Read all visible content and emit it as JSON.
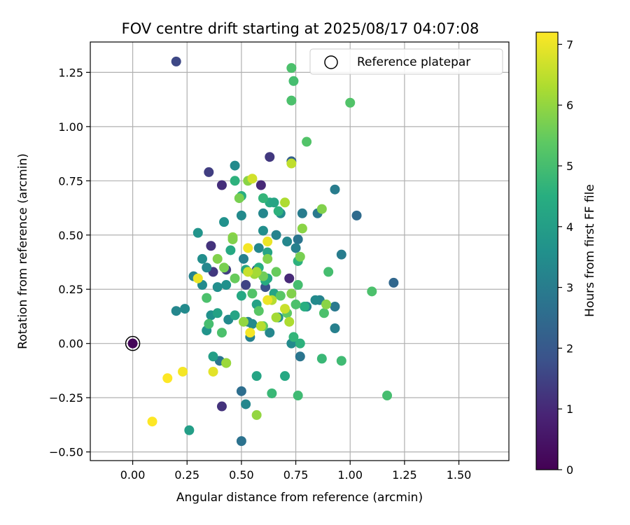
{
  "chart_data": {
    "type": "scatter",
    "title": "FOV centre drift starting at 2025/08/17 04:07:08",
    "xlabel": "Angular distance from reference (arcmin)",
    "ylabel": "Rotation from reference (arcmin)",
    "xlim": [
      -0.195,
      1.73
    ],
    "ylim": [
      -0.54,
      1.39
    ],
    "xticks": [
      0.0,
      0.25,
      0.5,
      0.75,
      1.0,
      1.25,
      1.5
    ],
    "xtick_labels": [
      "0.00",
      "0.25",
      "0.50",
      "0.75",
      "1.00",
      "1.25",
      "1.50"
    ],
    "yticks": [
      -0.5,
      -0.25,
      0.0,
      0.25,
      0.5,
      0.75,
      1.0,
      1.25
    ],
    "ytick_labels": [
      "−0.50",
      "−0.25",
      "0.00",
      "0.25",
      "0.50",
      "0.75",
      "1.00",
      "1.25"
    ],
    "grid": true,
    "legend": {
      "placement": "top-right",
      "entries": [
        {
          "label": "Reference platepar",
          "marker": "open-circle"
        }
      ]
    },
    "reference_point": {
      "x": 0.0,
      "y": 0.0,
      "hours": 0.0
    },
    "colorbar": {
      "label": "Hours from first FF file",
      "colormap": "viridis",
      "range": [
        0,
        7.2
      ],
      "ticks": [
        0,
        1,
        2,
        3,
        4,
        5,
        6,
        7
      ],
      "tick_labels": [
        "0",
        "1",
        "2",
        "3",
        "4",
        "5",
        "6",
        "7"
      ]
    },
    "points": [
      {
        "x": 0.0,
        "y": 0.0,
        "hours": 0.1
      },
      {
        "x": 0.2,
        "y": 1.3,
        "hours": 1.6
      },
      {
        "x": 0.63,
        "y": 0.86,
        "hours": 1.3
      },
      {
        "x": 0.35,
        "y": 0.79,
        "hours": 1.4
      },
      {
        "x": 0.41,
        "y": 0.73,
        "hours": 1.1
      },
      {
        "x": 0.59,
        "y": 0.73,
        "hours": 1.0
      },
      {
        "x": 0.36,
        "y": 0.45,
        "hours": 1.2
      },
      {
        "x": 0.37,
        "y": 0.33,
        "hours": 1.3
      },
      {
        "x": 0.43,
        "y": 0.34,
        "hours": 1.4
      },
      {
        "x": 0.52,
        "y": 0.27,
        "hours": 1.5
      },
      {
        "x": 0.72,
        "y": 0.3,
        "hours": 1.0
      },
      {
        "x": 0.41,
        "y": -0.29,
        "hours": 1.2
      },
      {
        "x": 0.73,
        "y": 0.84,
        "hours": 2.2
      },
      {
        "x": 0.61,
        "y": 0.26,
        "hours": 1.8
      },
      {
        "x": 0.57,
        "y": 0.34,
        "hours": 1.9
      },
      {
        "x": 1.03,
        "y": 0.59,
        "hours": 2.5
      },
      {
        "x": 1.2,
        "y": 0.28,
        "hours": 2.4
      },
      {
        "x": 0.5,
        "y": -0.22,
        "hours": 2.6
      },
      {
        "x": 0.5,
        "y": -0.45,
        "hours": 2.7
      },
      {
        "x": 0.4,
        "y": -0.08,
        "hours": 2.8
      },
      {
        "x": 0.77,
        "y": -0.06,
        "hours": 2.8
      },
      {
        "x": 0.85,
        "y": 0.6,
        "hours": 2.9
      },
      {
        "x": 0.93,
        "y": 0.71,
        "hours": 3.0
      },
      {
        "x": 0.96,
        "y": 0.41,
        "hours": 3.0
      },
      {
        "x": 0.93,
        "y": 0.17,
        "hours": 2.9
      },
      {
        "x": 0.93,
        "y": 0.07,
        "hours": 3.1
      },
      {
        "x": 0.86,
        "y": 0.2,
        "hours": 3.2
      },
      {
        "x": 0.84,
        "y": 0.2,
        "hours": 3.4
      },
      {
        "x": 0.78,
        "y": 0.6,
        "hours": 3.0
      },
      {
        "x": 0.76,
        "y": 0.48,
        "hours": 2.8
      },
      {
        "x": 0.75,
        "y": 0.44,
        "hours": 3.1
      },
      {
        "x": 0.71,
        "y": 0.47,
        "hours": 3.3
      },
      {
        "x": 0.68,
        "y": 0.6,
        "hours": 3.4
      },
      {
        "x": 0.66,
        "y": 0.5,
        "hours": 3.2
      },
      {
        "x": 0.6,
        "y": 0.6,
        "hours": 3.3
      },
      {
        "x": 0.6,
        "y": 0.52,
        "hours": 3.5
      },
      {
        "x": 0.58,
        "y": 0.44,
        "hours": 3.3
      },
      {
        "x": 0.5,
        "y": 0.59,
        "hours": 3.4
      },
      {
        "x": 0.51,
        "y": 0.39,
        "hours": 3.1
      },
      {
        "x": 0.47,
        "y": 0.82,
        "hours": 3.4
      },
      {
        "x": 0.42,
        "y": 0.56,
        "hours": 3.6
      },
      {
        "x": 0.3,
        "y": 0.51,
        "hours": 3.7
      },
      {
        "x": 0.32,
        "y": 0.39,
        "hours": 3.5
      },
      {
        "x": 0.28,
        "y": 0.31,
        "hours": 3.2
      },
      {
        "x": 0.32,
        "y": 0.27,
        "hours": 3.4
      },
      {
        "x": 0.34,
        "y": 0.35,
        "hours": 3.3
      },
      {
        "x": 0.39,
        "y": 0.26,
        "hours": 3.5
      },
      {
        "x": 0.43,
        "y": 0.27,
        "hours": 3.6
      },
      {
        "x": 0.44,
        "y": 0.11,
        "hours": 3.4
      },
      {
        "x": 0.36,
        "y": 0.13,
        "hours": 3.6
      },
      {
        "x": 0.34,
        "y": 0.06,
        "hours": 3.7
      },
      {
        "x": 0.2,
        "y": 0.15,
        "hours": 3.3
      },
      {
        "x": 0.24,
        "y": 0.16,
        "hours": 3.4
      },
      {
        "x": 0.53,
        "y": 0.1,
        "hours": 3.2
      },
      {
        "x": 0.55,
        "y": 0.09,
        "hours": 3.4
      },
      {
        "x": 0.54,
        "y": 0.03,
        "hours": 3.1
      },
      {
        "x": 0.63,
        "y": 0.05,
        "hours": 3.3
      },
      {
        "x": 0.67,
        "y": 0.12,
        "hours": 3.6
      },
      {
        "x": 0.73,
        "y": 0.0,
        "hours": 3.4
      },
      {
        "x": 0.8,
        "y": 0.17,
        "hours": 3.3
      },
      {
        "x": 0.52,
        "y": -0.28,
        "hours": 3.3
      },
      {
        "x": 0.26,
        "y": -0.4,
        "hours": 4.0
      },
      {
        "x": 0.37,
        "y": -0.06,
        "hours": 4.0
      },
      {
        "x": 0.57,
        "y": -0.15,
        "hours": 4.2
      },
      {
        "x": 0.7,
        "y": -0.15,
        "hours": 4.3
      },
      {
        "x": 0.39,
        "y": 0.14,
        "hours": 4.1
      },
      {
        "x": 0.47,
        "y": 0.13,
        "hours": 4.2
      },
      {
        "x": 0.5,
        "y": 0.22,
        "hours": 4.3
      },
      {
        "x": 0.57,
        "y": 0.18,
        "hours": 4.1
      },
      {
        "x": 0.65,
        "y": 0.23,
        "hours": 4.2
      },
      {
        "x": 0.62,
        "y": 0.3,
        "hours": 4.3
      },
      {
        "x": 0.52,
        "y": 0.34,
        "hours": 4.2
      },
      {
        "x": 0.45,
        "y": 0.43,
        "hours": 4.3
      },
      {
        "x": 0.58,
        "y": 0.35,
        "hours": 4.5
      },
      {
        "x": 0.61,
        "y": 0.29,
        "hours": 4.4
      },
      {
        "x": 0.62,
        "y": 0.42,
        "hours": 4.2
      },
      {
        "x": 0.63,
        "y": 0.65,
        "hours": 4.4
      },
      {
        "x": 0.65,
        "y": 0.65,
        "hours": 4.2
      },
      {
        "x": 0.47,
        "y": 0.75,
        "hours": 4.6
      },
      {
        "x": 0.5,
        "y": 0.68,
        "hours": 4.5
      },
      {
        "x": 0.67,
        "y": 0.61,
        "hours": 4.6
      },
      {
        "x": 0.6,
        "y": 0.67,
        "hours": 4.7
      },
      {
        "x": 0.76,
        "y": 0.38,
        "hours": 4.6
      },
      {
        "x": 0.79,
        "y": 0.17,
        "hours": 4.5
      },
      {
        "x": 0.77,
        "y": 0.0,
        "hours": 4.6
      },
      {
        "x": 0.74,
        "y": 0.03,
        "hours": 4.7
      },
      {
        "x": 0.64,
        "y": -0.23,
        "hours": 4.8
      },
      {
        "x": 0.76,
        "y": -0.24,
        "hours": 4.9
      },
      {
        "x": 0.87,
        "y": -0.07,
        "hours": 4.8
      },
      {
        "x": 0.96,
        "y": -0.08,
        "hours": 4.9
      },
      {
        "x": 1.17,
        "y": -0.24,
        "hours": 5.0
      },
      {
        "x": 1.1,
        "y": 0.24,
        "hours": 5.1
      },
      {
        "x": 0.9,
        "y": 0.33,
        "hours": 5.0
      },
      {
        "x": 0.88,
        "y": 0.14,
        "hours": 5.1
      },
      {
        "x": 0.76,
        "y": 0.27,
        "hours": 5.0
      },
      {
        "x": 0.75,
        "y": 0.18,
        "hours": 5.1
      },
      {
        "x": 0.8,
        "y": 0.93,
        "hours": 5.2
      },
      {
        "x": 0.73,
        "y": 1.12,
        "hours": 5.1
      },
      {
        "x": 0.74,
        "y": 1.21,
        "hours": 5.0
      },
      {
        "x": 0.73,
        "y": 1.27,
        "hours": 5.1
      },
      {
        "x": 1.0,
        "y": 1.11,
        "hours": 5.2
      },
      {
        "x": 0.34,
        "y": 0.21,
        "hours": 5.1
      },
      {
        "x": 0.35,
        "y": 0.09,
        "hours": 5.0
      },
      {
        "x": 0.41,
        "y": 0.05,
        "hours": 5.1
      },
      {
        "x": 0.43,
        "y": -0.09,
        "hours": 5.2
      },
      {
        "x": 0.55,
        "y": 0.23,
        "hours": 5.2
      },
      {
        "x": 0.58,
        "y": 0.15,
        "hours": 5.3
      },
      {
        "x": 0.6,
        "y": 0.08,
        "hours": 5.4
      },
      {
        "x": 0.68,
        "y": 0.22,
        "hours": 5.3
      },
      {
        "x": 0.71,
        "y": 0.14,
        "hours": 5.4
      },
      {
        "x": 0.66,
        "y": 0.33,
        "hours": 5.5
      },
      {
        "x": 0.6,
        "y": 0.31,
        "hours": 5.6
      },
      {
        "x": 0.47,
        "y": 0.3,
        "hours": 5.5
      },
      {
        "x": 0.39,
        "y": 0.39,
        "hours": 5.8
      },
      {
        "x": 0.42,
        "y": 0.35,
        "hours": 5.7
      },
      {
        "x": 0.46,
        "y": 0.49,
        "hours": 5.9
      },
      {
        "x": 0.46,
        "y": 0.48,
        "hours": 5.8
      },
      {
        "x": 0.49,
        "y": 0.67,
        "hours": 5.7
      },
      {
        "x": 0.53,
        "y": 0.75,
        "hours": 5.9
      },
      {
        "x": 0.62,
        "y": 0.39,
        "hours": 5.8
      },
      {
        "x": 0.73,
        "y": 0.23,
        "hours": 5.8
      },
      {
        "x": 0.77,
        "y": 0.4,
        "hours": 5.7
      },
      {
        "x": 0.78,
        "y": 0.53,
        "hours": 5.9
      },
      {
        "x": 0.87,
        "y": 0.62,
        "hours": 5.8
      },
      {
        "x": 0.89,
        "y": 0.18,
        "hours": 5.9
      },
      {
        "x": 0.57,
        "y": -0.33,
        "hours": 6.0
      },
      {
        "x": 0.43,
        "y": -0.09,
        "hours": 6.1
      },
      {
        "x": 0.51,
        "y": 0.1,
        "hours": 6.0
      },
      {
        "x": 0.56,
        "y": 0.32,
        "hours": 6.1
      },
      {
        "x": 0.57,
        "y": 0.33,
        "hours": 6.2
      },
      {
        "x": 0.66,
        "y": 0.12,
        "hours": 6.2
      },
      {
        "x": 0.7,
        "y": 0.65,
        "hours": 6.3
      },
      {
        "x": 0.73,
        "y": 0.83,
        "hours": 6.5
      },
      {
        "x": 0.72,
        "y": 0.1,
        "hours": 6.3
      },
      {
        "x": 0.59,
        "y": 0.08,
        "hours": 6.4
      },
      {
        "x": 0.64,
        "y": 0.2,
        "hours": 6.4
      },
      {
        "x": 0.7,
        "y": 0.16,
        "hours": 6.6
      },
      {
        "x": 0.53,
        "y": 0.33,
        "hours": 6.6
      },
      {
        "x": 0.55,
        "y": 0.76,
        "hours": 6.7
      },
      {
        "x": 0.62,
        "y": 0.47,
        "hours": 7.0
      },
      {
        "x": 0.53,
        "y": 0.44,
        "hours": 7.1
      },
      {
        "x": 0.62,
        "y": 0.2,
        "hours": 7.0
      },
      {
        "x": 0.54,
        "y": 0.05,
        "hours": 7.1
      },
      {
        "x": 0.3,
        "y": 0.3,
        "hours": 7.0
      },
      {
        "x": 0.37,
        "y": -0.13,
        "hours": 6.9
      },
      {
        "x": 0.23,
        "y": -0.13,
        "hours": 7.1
      },
      {
        "x": 0.16,
        "y": -0.16,
        "hours": 7.2
      },
      {
        "x": 0.09,
        "y": -0.36,
        "hours": 7.2
      }
    ]
  }
}
